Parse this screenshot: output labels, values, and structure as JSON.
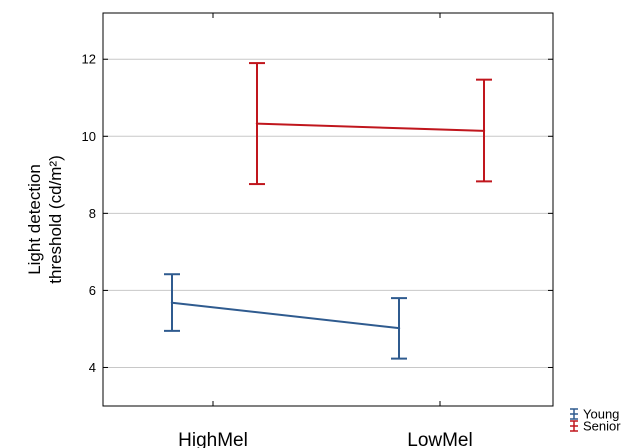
{
  "chart_data": {
    "type": "line",
    "categories": [
      "HighMel",
      "LowMel"
    ],
    "ylabel_line1": "Light detection",
    "ylabel_line2": "threshold (cd/m²)",
    "ylim": [
      3,
      13.2
    ],
    "yticks": [
      4,
      6,
      8,
      10,
      12
    ],
    "grid": true,
    "legend_position": "bottom-right",
    "series": [
      {
        "name": "Young",
        "color": "#2f5b8f",
        "mean": [
          5.68,
          5.02
        ],
        "lower": [
          4.95,
          4.23
        ],
        "upper": [
          6.42,
          5.8
        ]
      },
      {
        "name": "Senior",
        "color": "#c0161d",
        "mean": [
          10.33,
          10.14
        ],
        "lower": [
          8.76,
          8.83
        ],
        "upper": [
          11.9,
          11.47
        ]
      }
    ]
  }
}
